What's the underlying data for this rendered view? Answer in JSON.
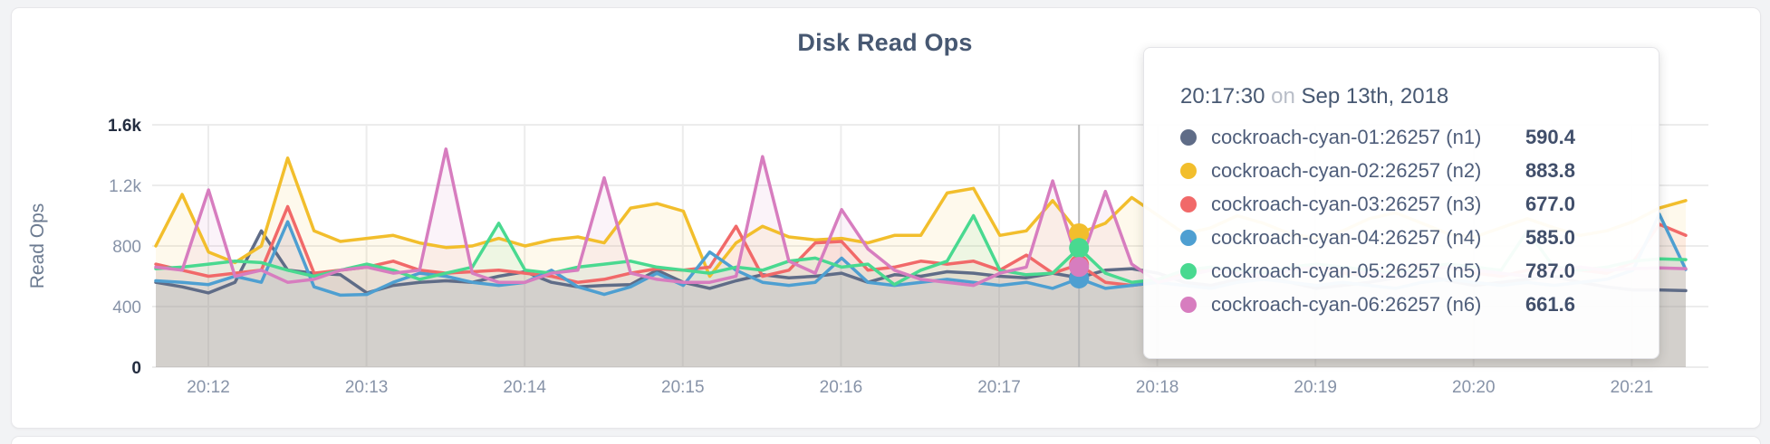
{
  "chart_data": {
    "type": "line",
    "title": "Disk Read Ops",
    "ylabel": "Read Ops",
    "xlabel": "",
    "ylim": [
      0,
      1600
    ],
    "grid": true,
    "legend": "none",
    "y_ticks": [
      {
        "label": "0",
        "value": 0,
        "emphasis": true
      },
      {
        "label": "400",
        "value": 400,
        "emphasis": false
      },
      {
        "label": "800",
        "value": 800,
        "emphasis": false
      },
      {
        "label": "1.2k",
        "value": 1200,
        "emphasis": false
      },
      {
        "label": "1.6k",
        "value": 1600,
        "emphasis": true
      }
    ],
    "x_ticks": [
      "20:12",
      "20:13",
      "20:14",
      "20:15",
      "20:16",
      "20:17",
      "20:18",
      "20:19",
      "20:20",
      "20:21"
    ],
    "x_start": "20:11:40",
    "x_step_seconds": 10,
    "series": [
      {
        "name": "cockroach-cyan-01:26257 (n1)",
        "color": "#5F6C87",
        "values": [
          560,
          530,
          490,
          560,
          900,
          640,
          620,
          610,
          490,
          540,
          560,
          570,
          560,
          600,
          630,
          560,
          530,
          540,
          545,
          640,
          560,
          520,
          570,
          610,
          590,
          600,
          620,
          560,
          610,
          600,
          630,
          620,
          600,
          590,
          620,
          590.4,
          640,
          650,
          620,
          560,
          540,
          580,
          600,
          560,
          520,
          540,
          560,
          590,
          610,
          570,
          540,
          560,
          580,
          600,
          560,
          530,
          510,
          510,
          505
        ]
      },
      {
        "name": "cockroach-cyan-02:26257 (n2)",
        "color": "#F2BE2C",
        "values": [
          800,
          1140,
          760,
          690,
          800,
          1380,
          900,
          830,
          850,
          870,
          820,
          790,
          800,
          850,
          800,
          840,
          860,
          820,
          1050,
          1080,
          1030,
          600,
          820,
          930,
          860,
          840,
          850,
          820,
          870,
          870,
          1150,
          1180,
          870,
          900,
          1100,
          883.8,
          950,
          1120,
          1000,
          880,
          920,
          1000,
          950,
          880,
          850,
          900,
          980,
          1020,
          950,
          880,
          860,
          920,
          980,
          920,
          870,
          900,
          960,
          1050,
          1100
        ]
      },
      {
        "name": "cockroach-cyan-03:26257 (n3)",
        "color": "#F16969",
        "values": [
          680,
          640,
          600,
          620,
          640,
          1060,
          620,
          640,
          660,
          700,
          640,
          620,
          630,
          640,
          620,
          600,
          560,
          580,
          620,
          650,
          640,
          660,
          930,
          600,
          640,
          820,
          830,
          640,
          660,
          700,
          680,
          700,
          640,
          740,
          620,
          677,
          560,
          540,
          560,
          620,
          660,
          640,
          600,
          640,
          660,
          620,
          600,
          640,
          680,
          660,
          620,
          600,
          640,
          660,
          640,
          620,
          693,
          943,
          870
        ]
      },
      {
        "name": "cockroach-cyan-04:26257 (n4)",
        "color": "#4E9FD1",
        "values": [
          570,
          560,
          545,
          600,
          560,
          960,
          530,
          475,
          480,
          560,
          620,
          600,
          560,
          540,
          560,
          640,
          530,
          480,
          530,
          620,
          540,
          760,
          640,
          560,
          540,
          560,
          720,
          560,
          540,
          560,
          580,
          560,
          540,
          560,
          520,
          585,
          520,
          540,
          560,
          540,
          520,
          560,
          580,
          560,
          540,
          560,
          540,
          520,
          560,
          580,
          560,
          540,
          560,
          540,
          560,
          580,
          640,
          1010,
          645
        ]
      },
      {
        "name": "cockroach-cyan-05:26257 (n5)",
        "color": "#49D990",
        "values": [
          650,
          660,
          680,
          700,
          690,
          640,
          600,
          640,
          680,
          640,
          580,
          620,
          660,
          950,
          640,
          620,
          660,
          680,
          700,
          660,
          640,
          620,
          660,
          640,
          700,
          720,
          660,
          680,
          545,
          640,
          700,
          1000,
          640,
          610,
          620,
          787,
          620,
          560,
          580,
          640,
          660,
          640,
          620,
          660,
          680,
          660,
          640,
          620,
          660,
          680,
          660,
          640,
          900,
          660,
          640,
          660,
          700,
          715,
          710
        ]
      },
      {
        "name": "cockroach-cyan-06:26257 (n6)",
        "color": "#D77DBF",
        "values": [
          660,
          640,
          1170,
          600,
          640,
          560,
          580,
          640,
          660,
          620,
          640,
          1440,
          620,
          560,
          560,
          620,
          640,
          1250,
          620,
          580,
          560,
          560,
          600,
          1390,
          700,
          620,
          1040,
          780,
          640,
          580,
          560,
          540,
          620,
          660,
          1230,
          661.6,
          1160,
          680,
          560,
          600,
          640,
          620,
          600,
          640,
          660,
          640,
          620,
          600,
          640,
          660,
          640,
          620,
          600,
          640,
          660,
          640,
          650,
          655,
          650
        ]
      }
    ],
    "hover": {
      "index": 35,
      "time": "20:17:30",
      "conjunction": "on",
      "date": "Sep 13th, 2018",
      "values": [
        "590.4",
        "883.8",
        "677.0",
        "585.0",
        "787.0",
        "661.6"
      ]
    }
  },
  "colors": {
    "grid": "#ECECEC",
    "hover_line": "#B8B8B8",
    "axis_tick": "#8793A8",
    "axis_maxmin": "#232D40",
    "title": "#475872",
    "fill_opacity": 0.09
  }
}
